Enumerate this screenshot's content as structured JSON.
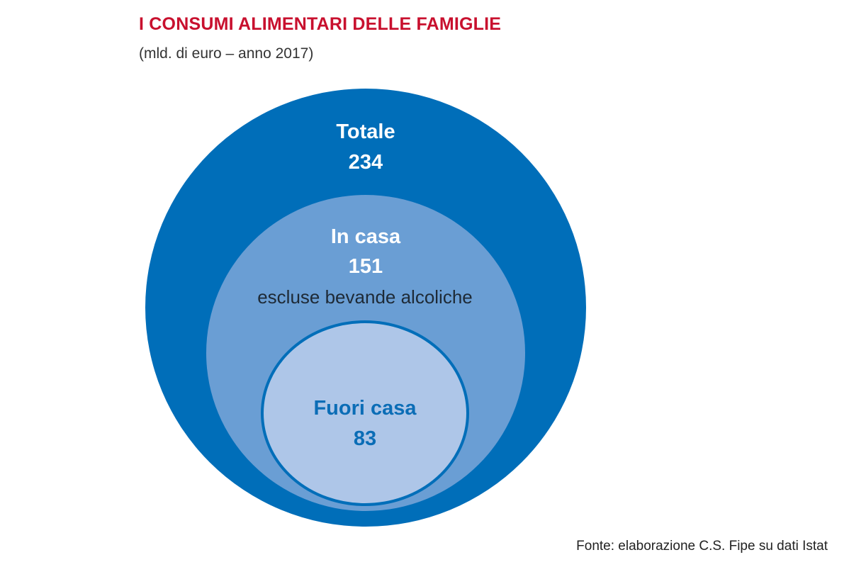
{
  "header": {
    "title": "I CONSUMI ALIMENTARI DELLE FAMIGLIE",
    "subtitle": "(mld. di euro – anno 2017)"
  },
  "footer": {
    "source": "Fonte: elaborazione C.S. Fipe su dati Istat"
  },
  "colors": {
    "title": "#c8102e",
    "outer_circle": "#006eb9",
    "middle_circle": "#6a9ed4",
    "inner_circle": "#aec6e8",
    "inner_text": "#0b6db6"
  },
  "chart_data": {
    "type": "nested-circles",
    "title": "I CONSUMI ALIMENTARI DELLE FAMIGLIE",
    "unit": "mld. di euro",
    "year": "2017",
    "series": [
      {
        "name": "Totale",
        "value": 234,
        "note": ""
      },
      {
        "name": "In casa",
        "value": 151,
        "note": "escluse bevande alcoliche"
      },
      {
        "name": "Fuori casa",
        "value": 83,
        "note": ""
      }
    ]
  }
}
